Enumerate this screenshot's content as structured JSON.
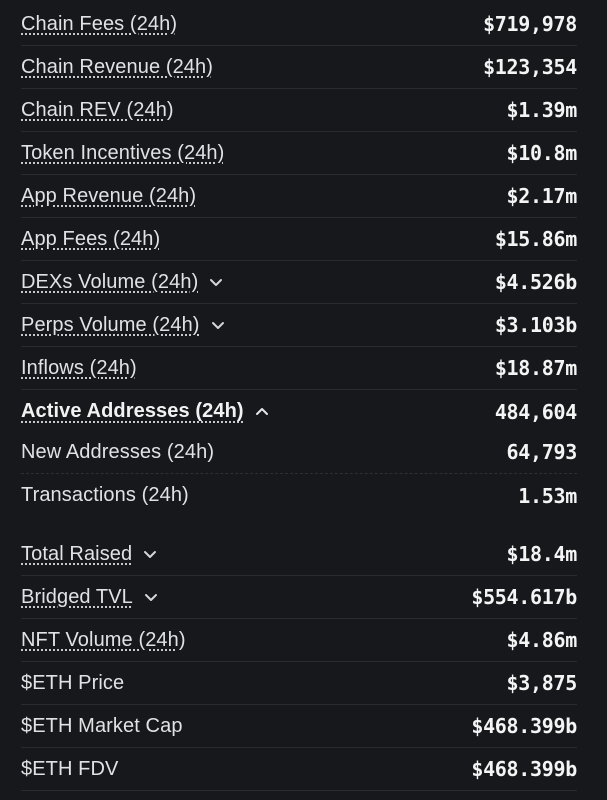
{
  "rows": [
    {
      "label": "Chain Fees (24h)",
      "value": "$719,978"
    },
    {
      "label": "Chain Revenue (24h)",
      "value": "$123,354"
    },
    {
      "label": "Chain REV (24h)",
      "value": "$1.39m"
    },
    {
      "label": "Token Incentives (24h)",
      "value": "$10.8m"
    },
    {
      "label": "App Revenue (24h)",
      "value": "$2.17m"
    },
    {
      "label": "App Fees (24h)",
      "value": "$15.86m"
    },
    {
      "label": "DEXs Volume (24h)",
      "value": "$4.526b",
      "chevron": "chevron-down-icon"
    },
    {
      "label": "Perps Volume (24h)",
      "value": "$3.103b",
      "chevron": "chevron-down-icon"
    },
    {
      "label": "Inflows (24h)",
      "value": "$18.87m"
    },
    {
      "label": "Active Addresses (24h)",
      "value": "484,604",
      "chevron": "chevron-up-icon"
    },
    {
      "label": "New Addresses (24h)",
      "value": "64,793"
    },
    {
      "label": "Transactions (24h)",
      "value": "1.53m"
    },
    {
      "label": "Total Raised",
      "value": "$18.4m",
      "chevron": "chevron-down-icon"
    },
    {
      "label": "Bridged TVL",
      "value": "$554.617b",
      "chevron": "chevron-down-icon"
    },
    {
      "label": "NFT Volume (24h)",
      "value": "$4.86m"
    },
    {
      "label": "$ETH Price",
      "value": "$3,875"
    },
    {
      "label": "$ETH Market Cap",
      "value": "$468.399b"
    },
    {
      "label": "$ETH FDV",
      "value": "$468.399b"
    }
  ]
}
